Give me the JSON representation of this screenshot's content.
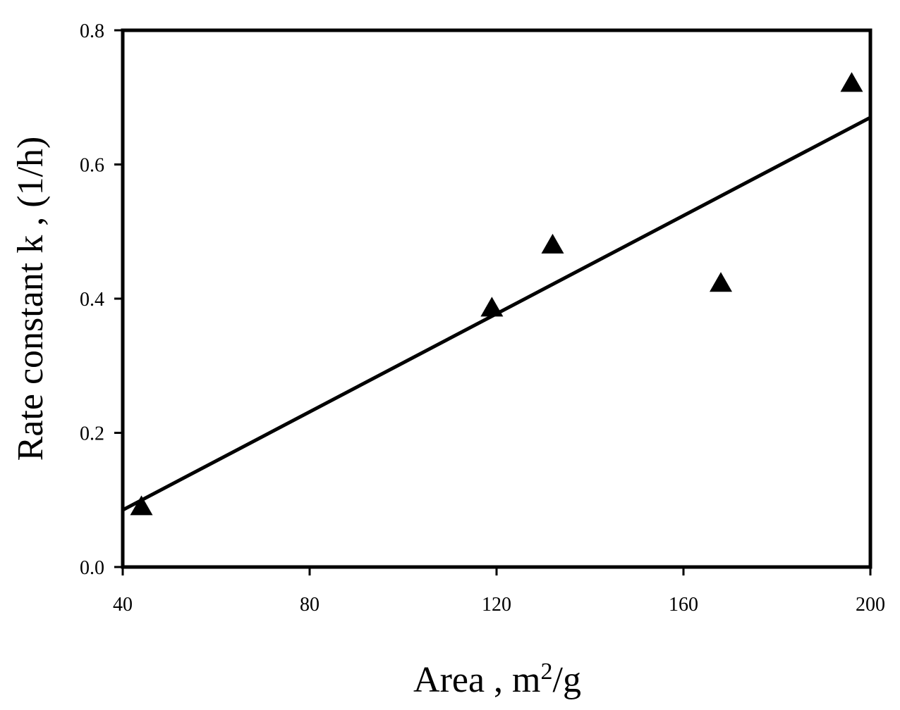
{
  "chart_data": {
    "type": "scatter",
    "xlabel": {
      "prefix": "Area ,  m",
      "superscript": "2",
      "suffix": "/g"
    },
    "ylabel": "Rate constant k , (1/h)",
    "xlim": [
      40,
      200
    ],
    "ylim": [
      0,
      0.8
    ],
    "x_ticks": [
      {
        "value": 40,
        "label": "40"
      },
      {
        "value": 80,
        "label": "80"
      },
      {
        "value": 120,
        "label": "120"
      },
      {
        "value": 160,
        "label": "160"
      },
      {
        "value": 200,
        "label": "200"
      }
    ],
    "y_ticks": [
      {
        "value": 0.0,
        "label": "0.0"
      },
      {
        "value": 0.2,
        "label": "0.2"
      },
      {
        "value": 0.4,
        "label": "0.4"
      },
      {
        "value": 0.6,
        "label": "0.6"
      },
      {
        "value": 0.8,
        "label": "0.8"
      }
    ],
    "grid": false,
    "marker": "triangle",
    "marker_color": "#000000",
    "points": [
      {
        "x": 44,
        "y": 0.092
      },
      {
        "x": 119,
        "y": 0.388
      },
      {
        "x": 132,
        "y": 0.482
      },
      {
        "x": 168,
        "y": 0.425
      },
      {
        "x": 196,
        "y": 0.723
      }
    ],
    "fit_line": {
      "x": [
        40,
        200
      ],
      "y": [
        0.085,
        0.67
      ],
      "color": "#000000"
    }
  }
}
